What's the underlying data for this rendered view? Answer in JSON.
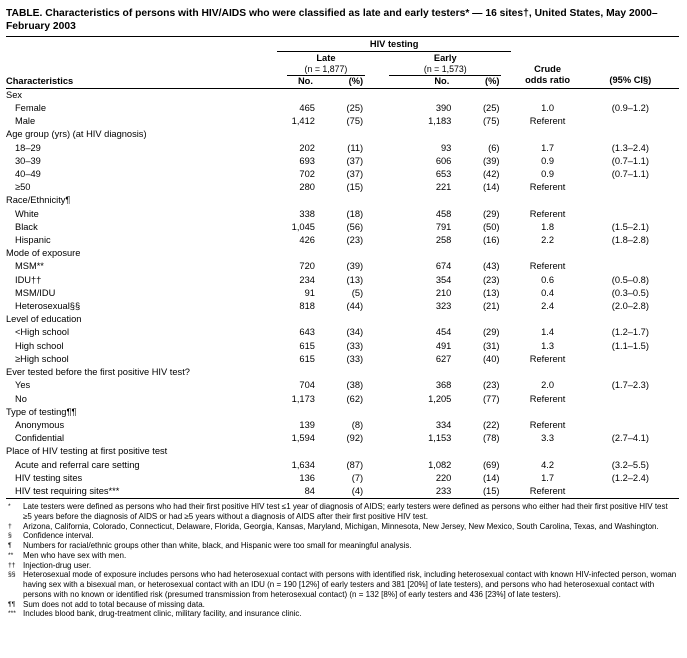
{
  "title": "TABLE. Characteristics of persons with HIV/AIDS who were classified as late and early testers* — 16 sites†, United States, May 2000–February 2003",
  "table": {
    "group_header": "HIV testing",
    "late": {
      "label": "Late",
      "n": "(n = 1,877)"
    },
    "early": {
      "label": "Early",
      "n": "(n = 1,573)"
    },
    "headers": {
      "characteristics": "Characteristics",
      "no": "No.",
      "pct": "(%)",
      "crude_line1": "Crude",
      "crude_line2": "odds ratio",
      "ci": "(95% CI§)"
    },
    "sections": [
      {
        "header": "Sex",
        "rows": [
          {
            "label": "Female",
            "cells": [
              "465",
              "(25)",
              "390",
              "(25)",
              "1.0",
              "(0.9–1.2)"
            ]
          },
          {
            "label": "Male",
            "cells": [
              "1,412",
              "(75)",
              "1,183",
              "(75)",
              "Referent",
              ""
            ]
          }
        ]
      },
      {
        "header": "Age group (yrs) (at HIV diagnosis)",
        "rows": [
          {
            "label": "18–29",
            "cells": [
              "202",
              "(11)",
              "93",
              "(6)",
              "1.7",
              "(1.3–2.4)"
            ]
          },
          {
            "label": "30–39",
            "cells": [
              "693",
              "(37)",
              "606",
              "(39)",
              "0.9",
              "(0.7–1.1)"
            ]
          },
          {
            "label": "40–49",
            "cells": [
              "702",
              "(37)",
              "653",
              "(42)",
              "0.9",
              "(0.7–1.1)"
            ]
          },
          {
            "label": "≥50",
            "cells": [
              "280",
              "(15)",
              "221",
              "(14)",
              "Referent",
              ""
            ]
          }
        ]
      },
      {
        "header": "Race/Ethnicity¶",
        "rows": [
          {
            "label": "White",
            "cells": [
              "338",
              "(18)",
              "458",
              "(29)",
              "Referent",
              ""
            ]
          },
          {
            "label": "Black",
            "cells": [
              "1,045",
              "(56)",
              "791",
              "(50)",
              "1.8",
              "(1.5–2.1)"
            ]
          },
          {
            "label": "Hispanic",
            "cells": [
              "426",
              "(23)",
              "258",
              "(16)",
              "2.2",
              "(1.8–2.8)"
            ]
          }
        ]
      },
      {
        "header": "Mode of exposure",
        "rows": [
          {
            "label": "MSM**",
            "cells": [
              "720",
              "(39)",
              "674",
              "(43)",
              "Referent",
              ""
            ]
          },
          {
            "label": "IDU††",
            "cells": [
              "234",
              "(13)",
              "354",
              "(23)",
              "0.6",
              "(0.5–0.8)"
            ]
          },
          {
            "label": "MSM/IDU",
            "cells": [
              "91",
              "(5)",
              "210",
              "(13)",
              "0.4",
              "(0.3–0.5)"
            ]
          },
          {
            "label": "Heterosexual§§",
            "cells": [
              "818",
              "(44)",
              "323",
              "(21)",
              "2.4",
              "(2.0–2.8)"
            ]
          }
        ]
      },
      {
        "header": "Level of education",
        "rows": [
          {
            "label": "<High school",
            "cells": [
              "643",
              "(34)",
              "454",
              "(29)",
              "1.4",
              "(1.2–1.7)"
            ]
          },
          {
            "label": "High school",
            "cells": [
              "615",
              "(33)",
              "491",
              "(31)",
              "1.3",
              "(1.1–1.5)"
            ]
          },
          {
            "label": "≥High school",
            "cells": [
              "615",
              "(33)",
              "627",
              "(40)",
              "Referent",
              ""
            ]
          }
        ]
      },
      {
        "header": "Ever tested before the first positive HIV test?",
        "rows": [
          {
            "label": "Yes",
            "cells": [
              "704",
              "(38)",
              "368",
              "(23)",
              "2.0",
              "(1.7–2.3)"
            ]
          },
          {
            "label": "No",
            "cells": [
              "1,173",
              "(62)",
              "1,205",
              "(77)",
              "Referent",
              ""
            ]
          }
        ]
      },
      {
        "header": "Type of testing¶¶",
        "rows": [
          {
            "label": "Anonymous",
            "cells": [
              "139",
              "(8)",
              "334",
              "(22)",
              "Referent",
              ""
            ]
          },
          {
            "label": "Confidential",
            "cells": [
              "1,594",
              "(92)",
              "1,153",
              "(78)",
              "3.3",
              "(2.7–4.1)"
            ]
          }
        ]
      },
      {
        "header": "Place of HIV testing at first positive test",
        "rows": [
          {
            "label": "Acute and referral care setting",
            "cells": [
              "1,634",
              "(87)",
              "1,082",
              "(69)",
              "4.2",
              "(3.2–5.5)"
            ]
          },
          {
            "label": "HIV testing sites",
            "cells": [
              "136",
              "(7)",
              "220",
              "(14)",
              "1.7",
              "(1.2–2.4)"
            ]
          },
          {
            "label": "HIV test requiring sites***",
            "cells": [
              "84",
              "(4)",
              "233",
              "(15)",
              "Referent",
              ""
            ]
          }
        ]
      }
    ]
  },
  "footnotes": [
    {
      "marker": "*",
      "text": "Late testers were defined as persons who had their first positive HIV test ≤1 year of diagnosis of AIDS; early testers were defined as persons who either had their first positive HIV test ≥5 years before the diagnosis of AIDS or had ≥5 years without a diagnosis of AIDS after their first positive HIV test."
    },
    {
      "marker": "†",
      "text": "Arizona, California, Colorado, Connecticut, Delaware, Florida, Georgia, Kansas, Maryland, Michigan, Minnesota, New Jersey, New Mexico, South Carolina, Texas, and Washington."
    },
    {
      "marker": "§",
      "text": "Confidence interval."
    },
    {
      "marker": "¶",
      "text": "Numbers for racial/ethnic groups other than white, black, and Hispanic were too small for meaningful analysis."
    },
    {
      "marker": "**",
      "text": "Men who have sex with men."
    },
    {
      "marker": "††",
      "text": "Injection-drug user."
    },
    {
      "marker": "§§",
      "text": "Heterosexual mode of exposure includes persons who had heterosexual contact with persons with identified risk, including heterosexual contact with known HIV-infected person, woman having sex with a bisexual man, or heterosexual contact with an IDU (n = 190 [12%] of early testers and 381 [20%] of late testers), and persons who had heterosexual contact with persons with no known or identified risk (presumed transmission from heterosexual contact) (n = 132 [8%] of early testers and 436 [23%] of late testers)."
    },
    {
      "marker": "¶¶",
      "text": "Sum does not add to total because of missing data."
    },
    {
      "marker": "***",
      "text": "Includes blood bank, drug-treatment clinic, military facility, and insurance clinic."
    }
  ]
}
